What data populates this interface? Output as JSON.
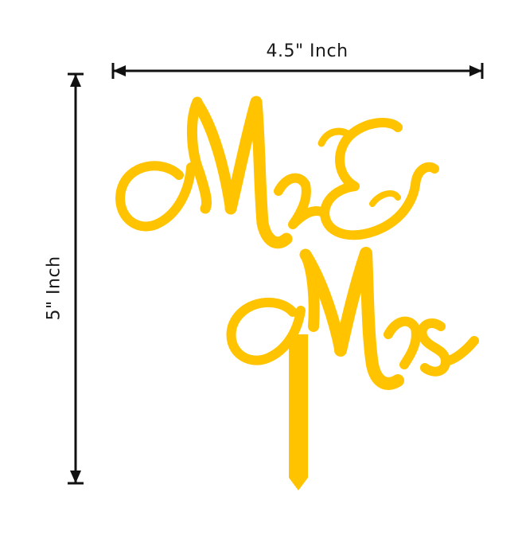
{
  "product": {
    "script_text_line1": "Mr",
    "ampersand": "&",
    "script_text_line2": "Mrs",
    "color": "#FFC300"
  },
  "dimensions": {
    "width_label": "4.5\" Inch",
    "height_label": "5\" Inch",
    "arrow_color": "#111111"
  }
}
